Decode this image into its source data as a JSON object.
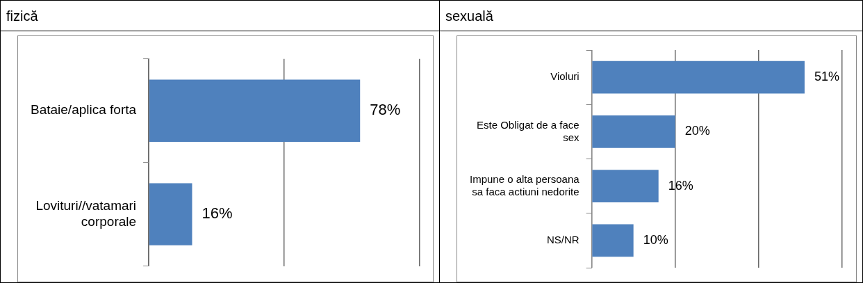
{
  "chart_data": [
    {
      "type": "bar",
      "title": "fizică",
      "orientation": "horizontal",
      "categories": [
        "Bataie/aplica forta",
        "Lovituri//vatamari corporale"
      ],
      "values": [
        78,
        16
      ],
      "value_labels": [
        "78%",
        "16%"
      ],
      "color": "#4f81bd",
      "xlim": [
        0,
        100
      ],
      "xticks": [
        {
          "value": 0,
          "label": null
        },
        {
          "value": 50,
          "label": null
        },
        {
          "value": 100,
          "label": null
        }
      ],
      "grid": "x",
      "legend": false,
      "tick_labels": "y"
    },
    {
      "type": "bar",
      "title": "sexuală",
      "orientation": "horizontal",
      "categories": [
        "Violuri",
        "Este Obligat de a face sex",
        "Impune o alta persoana sa faca actiuni nedorite",
        "NS/NR"
      ],
      "values": [
        51,
        20,
        16,
        10
      ],
      "value_labels": [
        "51%",
        "20%",
        "16%",
        "10%"
      ],
      "color": "#4f81bd",
      "xlim": [
        0,
        60
      ],
      "xticks": [
        {
          "value": 0,
          "label": null
        },
        {
          "value": 20,
          "label": null
        },
        {
          "value": 40,
          "label": null
        },
        {
          "value": 60,
          "label": null
        }
      ],
      "grid": "x",
      "legend": false,
      "tick_labels": "y"
    }
  ]
}
